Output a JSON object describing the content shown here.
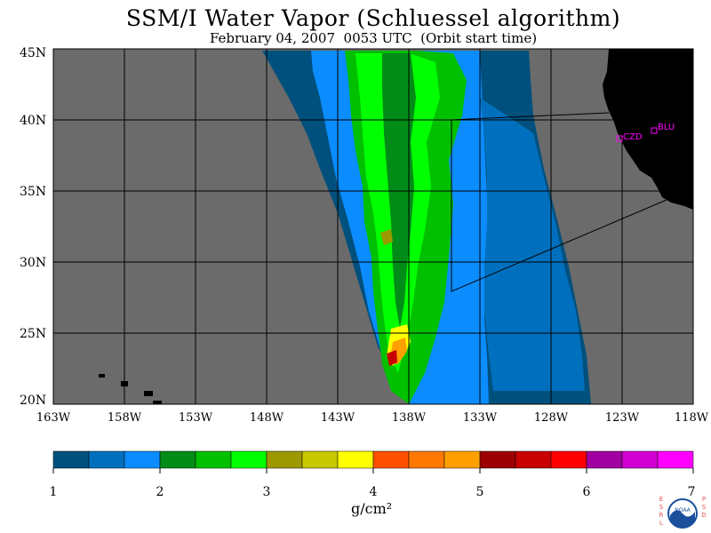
{
  "title": "SSM/I Water Vapor (Schluessel algorithm)",
  "subtitle": "February 04, 2007  0053 UTC  (Orbit start time)",
  "lat_labels": [
    "45N",
    "40N",
    "35N",
    "30N",
    "25N",
    "20N"
  ],
  "lon_labels": [
    "163W",
    "158W",
    "153W",
    "148W",
    "143W",
    "138W",
    "133W",
    "128W",
    "123W",
    "118W"
  ],
  "stations": [
    "CZD",
    "BLU"
  ],
  "colorbar": {
    "ticks": [
      "1",
      "2",
      "3",
      "4",
      "5",
      "6",
      "7"
    ],
    "units": "g/cm²",
    "colors": [
      "#00507e",
      "#0070be",
      "#0b8cff",
      "#008c17",
      "#00c000",
      "#00ff00",
      "#9c9800",
      "#c8c800",
      "#ffff00",
      "#ff5000",
      "#ff7800",
      "#ffa000",
      "#9c0000",
      "#c80000",
      "#ff0000",
      "#a000a0",
      "#d200d2",
      "#ff00ff"
    ]
  },
  "logo": {
    "left_text": "ESRL",
    "right_text": "PSD",
    "center_text": "NOAA"
  },
  "colors": {
    "no_data": "#6b6b6b",
    "land": "#000000",
    "station": "#ff00ff"
  }
}
